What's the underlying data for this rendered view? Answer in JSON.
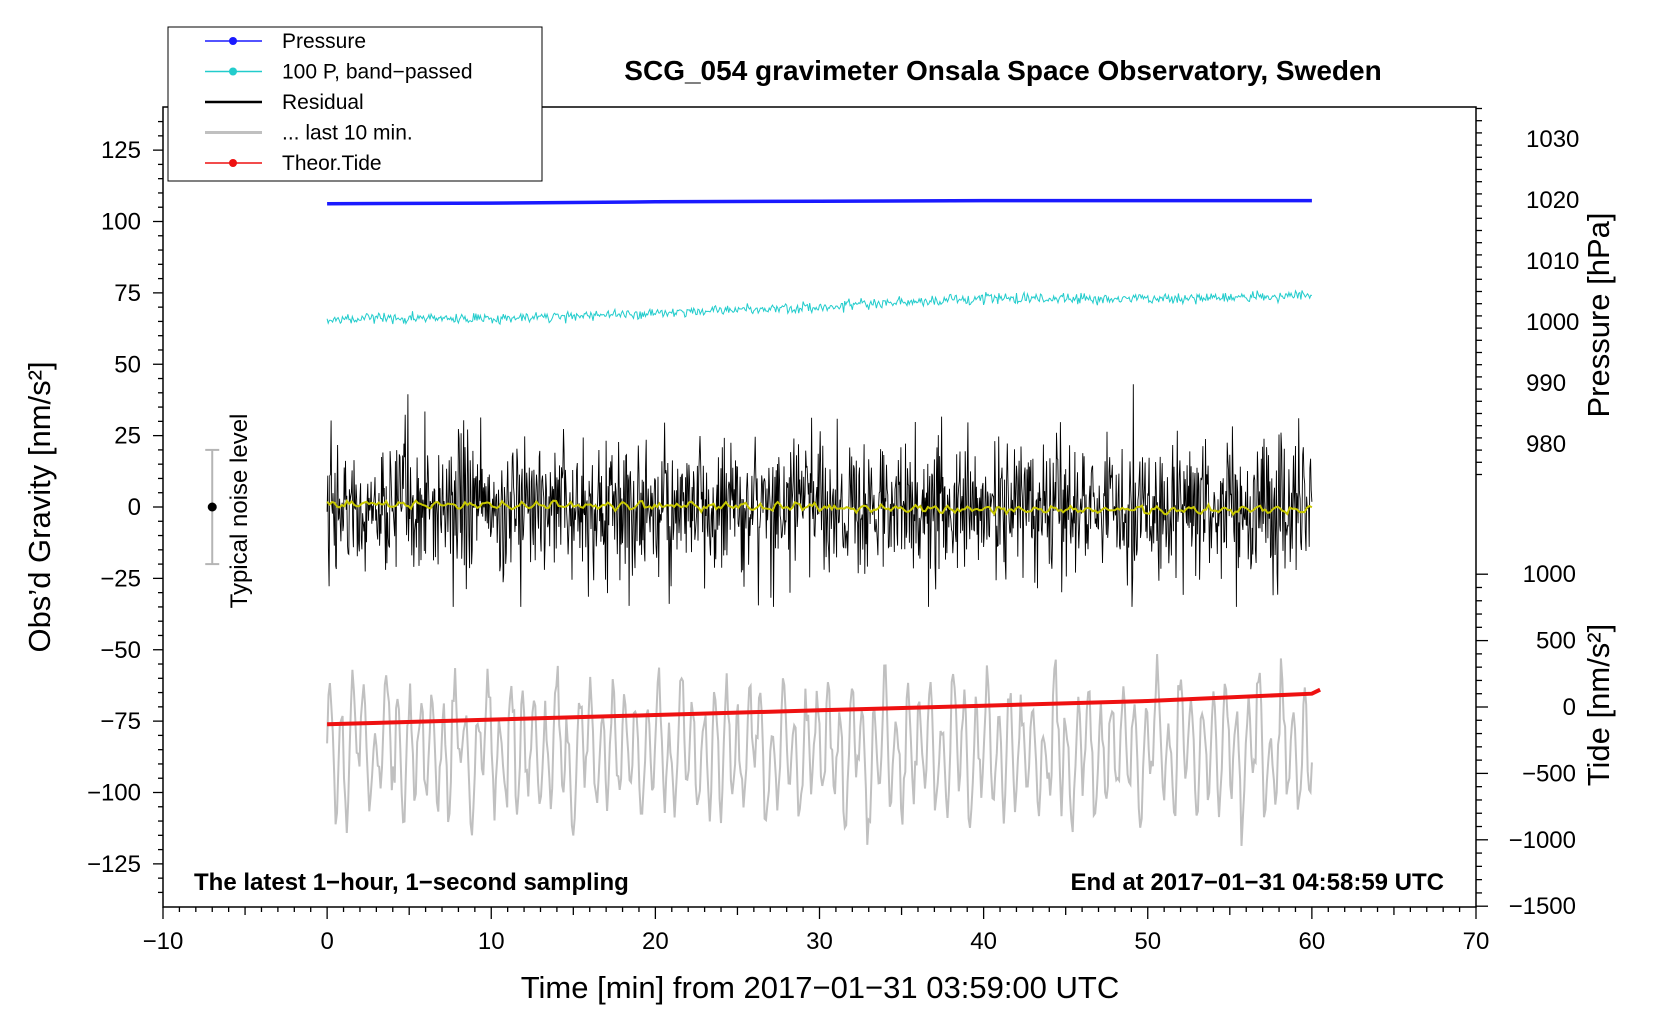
{
  "chart_data": {
    "type": "line",
    "title": "SCG_054 gravimeter Onsala Space Observatory, Sweden",
    "xlabel": "Time [min] from 2017−01−31 03:59:00 UTC",
    "ylabel_left": "Obs’d Gravity [nm/s²]",
    "ylabel_pressure": "Pressure [hPa]",
    "ylabel_tide": "Tide [nm/s²]",
    "xlim": [
      -10,
      70
    ],
    "ylim_left": [
      -140,
      140
    ],
    "x_ticks": [
      "−10",
      "0",
      "10",
      "20",
      "30",
      "40",
      "50",
      "60",
      "70"
    ],
    "y_ticks_left": [
      "125",
      "100",
      "75",
      "50",
      "25",
      "0",
      "−25",
      "−50",
      "−75",
      "−100",
      "−125"
    ],
    "pressure_ticks": [
      "1030",
      "1020",
      "1010",
      "1000",
      "990",
      "980"
    ],
    "tide_ticks": [
      "1000",
      "500",
      "0",
      "−500",
      "−1000",
      "−1500"
    ],
    "note_left": "The latest 1−hour, 1−second sampling",
    "note_right": "End at 2017−01−31 04:58:59 UTC",
    "noise_label": "Typical noise level",
    "noise_bar": {
      "center": 0,
      "low": -20,
      "high": 20,
      "x": -7
    },
    "legend": [
      {
        "label": "Pressure",
        "color": "#1a1aff",
        "marker": true
      },
      {
        "label": "100 P, band−passed",
        "color": "#22cccc",
        "marker": true
      },
      {
        "label": "Residual",
        "color": "#000000",
        "marker": false
      },
      {
        "label": "... last 10 min.",
        "color": "#c0c0c0",
        "marker": false
      },
      {
        "label": "Theor.Tide",
        "color": "#ee1111",
        "marker": true
      }
    ],
    "series": [
      {
        "name": "Pressure",
        "axis": "pressure_hPa",
        "color": "#1a1aff",
        "x": [
          0,
          10,
          20,
          30,
          40,
          50,
          60
        ],
        "y": [
          1019.4,
          1019.5,
          1019.7,
          1019.8,
          1019.9,
          1019.9,
          1019.9
        ]
      },
      {
        "name": "100 P, band−passed",
        "axis": "gravity",
        "color": "#22cccc",
        "x": [
          0,
          10,
          20,
          30,
          40,
          50,
          60
        ],
        "y": [
          66,
          66,
          68,
          70,
          73,
          73,
          74
        ],
        "noise_amplitude": 1.5
      },
      {
        "name": "Residual",
        "axis": "gravity",
        "color": "#000000",
        "x": [
          0,
          60
        ],
        "y": [
          0,
          0
        ],
        "noise_amplitude": 20,
        "min": -35,
        "max": 43
      },
      {
        "name": "Residual smoothed",
        "axis": "gravity",
        "color": "#c8c800",
        "x": [
          0,
          10,
          20,
          30,
          40,
          50,
          60
        ],
        "y": [
          1,
          0.5,
          0.5,
          0,
          -1,
          -1,
          -1
        ]
      },
      {
        "name": "... last 10 min.",
        "axis": "gravity",
        "color": "#c0c0c0",
        "x_range": [
          0,
          60
        ],
        "offset": -85,
        "amplitude": 32
      },
      {
        "name": "Theor.Tide",
        "axis": "tide_nm_s2",
        "color": "#ee1111",
        "x": [
          0,
          10,
          20,
          30,
          40,
          50,
          60,
          60.5
        ],
        "y": [
          -130,
          -95,
          -60,
          -25,
          10,
          45,
          100,
          130
        ]
      }
    ]
  }
}
